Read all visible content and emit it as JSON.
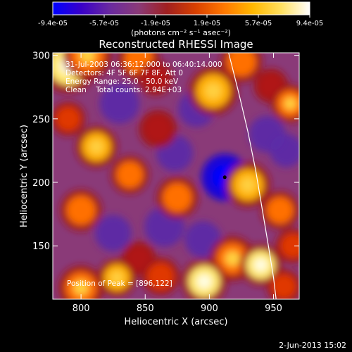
{
  "colorbar": {
    "ticks": [
      "-9.4e-05",
      "-5.7e-05",
      "-1.9e-05",
      "1.9e-05",
      "5.7e-05",
      "9.4e-05"
    ],
    "range": [
      -9.4e-05,
      9.4e-05
    ],
    "units_label": "(photons cm⁻² s⁻¹ asec⁻²)",
    "colors": [
      "#0000ff",
      "#3a00c8",
      "#6a2aa0",
      "#8a3a78",
      "#a02020",
      "#d84000",
      "#ff7800",
      "#ffb800",
      "#ffe060",
      "#ffffff"
    ]
  },
  "chart_data": {
    "type": "heatmap",
    "title": "Reconstructed RHESSI Image",
    "xlabel": "Heliocentric X (arcsec)",
    "ylabel": "Heliocentric Y (arcsec)",
    "xlim": [
      778,
      970
    ],
    "ylim": [
      108,
      302
    ],
    "xticks": [
      800,
      850,
      900,
      950
    ],
    "yticks": [
      150,
      200,
      250,
      300
    ],
    "info_lines": [
      "31-Jul-2003 06:36:12.000 to 06:40:14.000",
      "Detectors: 4F 5F 6F 7F 8F, Att 0",
      "Energy Range: 25.0 - 50.0 keV",
      "Clean    Total counts: 2.94E+03"
    ],
    "peak_label": "Position of Peak = [896,122]",
    "peak_position": [
      896,
      122
    ],
    "marked_point": [
      912,
      204
    ],
    "limb_curve": [
      [
        915,
        302
      ],
      [
        923,
        270
      ],
      [
        930,
        240
      ],
      [
        936,
        210
      ],
      [
        941,
        180
      ],
      [
        946,
        150
      ],
      [
        950,
        125
      ],
      [
        952,
        108
      ]
    ],
    "hot_regions": [
      {
        "x": 790,
        "y": 292,
        "level": 1.0,
        "r": 16
      },
      {
        "x": 805,
        "y": 300,
        "level": 0.85,
        "r": 14
      },
      {
        "x": 845,
        "y": 297,
        "level": 0.8,
        "r": 12
      },
      {
        "x": 858,
        "y": 282,
        "level": 0.55,
        "r": 10
      },
      {
        "x": 903,
        "y": 272,
        "level": 0.9,
        "r": 14
      },
      {
        "x": 925,
        "y": 295,
        "level": 0.75,
        "r": 12
      },
      {
        "x": 948,
        "y": 276,
        "level": 0.5,
        "r": 10
      },
      {
        "x": 963,
        "y": 262,
        "level": 0.85,
        "r": 11
      },
      {
        "x": 860,
        "y": 242,
        "level": 0.55,
        "r": 11
      },
      {
        "x": 812,
        "y": 228,
        "level": 0.95,
        "r": 12
      },
      {
        "x": 790,
        "y": 250,
        "level": 0.6,
        "r": 10
      },
      {
        "x": 838,
        "y": 206,
        "level": 0.75,
        "r": 11
      },
      {
        "x": 930,
        "y": 198,
        "level": 0.95,
        "r": 13
      },
      {
        "x": 955,
        "y": 178,
        "level": 0.8,
        "r": 11
      },
      {
        "x": 875,
        "y": 188,
        "level": 0.8,
        "r": 12
      },
      {
        "x": 800,
        "y": 178,
        "level": 0.75,
        "r": 12
      },
      {
        "x": 845,
        "y": 140,
        "level": 0.55,
        "r": 10
      },
      {
        "x": 918,
        "y": 140,
        "level": 0.85,
        "r": 13
      },
      {
        "x": 940,
        "y": 135,
        "level": 1.0,
        "r": 12
      },
      {
        "x": 965,
        "y": 150,
        "level": 0.7,
        "r": 10
      },
      {
        "x": 800,
        "y": 117,
        "level": 0.85,
        "r": 13
      },
      {
        "x": 828,
        "y": 125,
        "level": 0.9,
        "r": 11
      },
      {
        "x": 862,
        "y": 126,
        "level": 0.7,
        "r": 11
      },
      {
        "x": 896,
        "y": 122,
        "level": 1.0,
        "r": 13
      },
      {
        "x": 958,
        "y": 118,
        "level": 0.6,
        "r": 10
      }
    ],
    "cold_regions": [
      {
        "x": 912,
        "y": 204,
        "level": 1.0,
        "r": 14
      },
      {
        "x": 890,
        "y": 258,
        "level": 0.5,
        "r": 11
      },
      {
        "x": 830,
        "y": 262,
        "level": 0.45,
        "r": 12
      },
      {
        "x": 873,
        "y": 223,
        "level": 0.45,
        "r": 11
      },
      {
        "x": 865,
        "y": 165,
        "level": 0.45,
        "r": 12
      },
      {
        "x": 825,
        "y": 160,
        "level": 0.4,
        "r": 11
      },
      {
        "x": 945,
        "y": 238,
        "level": 0.4,
        "r": 11
      },
      {
        "x": 895,
        "y": 155,
        "level": 0.35,
        "r": 11
      },
      {
        "x": 960,
        "y": 225,
        "level": 0.35,
        "r": 10
      }
    ]
  },
  "footer": {
    "date": "2-Jun-2013 15:02"
  }
}
